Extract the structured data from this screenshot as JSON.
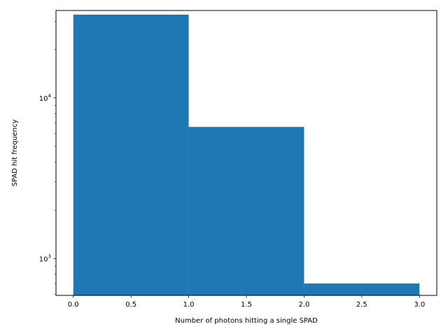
{
  "chart_data": {
    "type": "bar",
    "scale_y": "log",
    "bins": [
      {
        "x_start": 0.0,
        "x_end": 1.0,
        "value": 33000
      },
      {
        "x_start": 1.0,
        "x_end": 2.0,
        "value": 6600
      },
      {
        "x_start": 2.0,
        "x_end": 3.0,
        "value": 700
      }
    ],
    "xlabel": "Number of photons hitting a single SPAD",
    "ylabel": "SPAD hit frequency",
    "xlim": [
      -0.15,
      3.15
    ],
    "ylim": [
      590,
      35000
    ],
    "x_ticks": [
      0.0,
      0.5,
      1.0,
      1.5,
      2.0,
      2.5,
      3.0
    ],
    "x_tick_labels": [
      "0.0",
      "0.5",
      "1.0",
      "1.5",
      "2.0",
      "2.5",
      "3.0"
    ],
    "y_major_ticks": [
      1000,
      10000
    ],
    "y_major_tick_labels": [
      {
        "base": "10",
        "exp": "3"
      },
      {
        "base": "10",
        "exp": "4"
      }
    ],
    "y_minor_ticks": [
      600,
      700,
      800,
      900,
      2000,
      3000,
      4000,
      5000,
      6000,
      7000,
      8000,
      9000,
      20000,
      30000
    ],
    "bar_color": "#1f77b4",
    "grid": false,
    "legend": "none"
  }
}
